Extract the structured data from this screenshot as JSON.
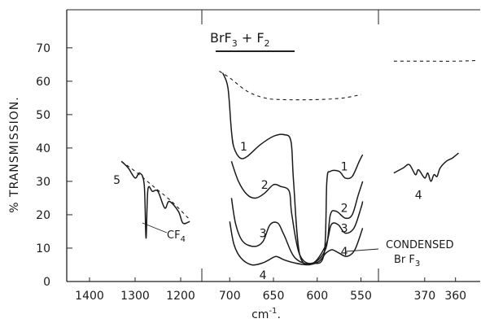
{
  "chart_data": {
    "type": "line",
    "title": "BrF3 + F2",
    "title_parts": {
      "base1": "BrF",
      "sub1": "3",
      "mid": " + F",
      "sub2": "2"
    },
    "ylabel": "% TRANSMISSION.",
    "xlabel": "cm-1.",
    "xlabel_parts": {
      "base": "cm",
      "sup": "-1",
      "tail": "."
    },
    "ylim": [
      0,
      78
    ],
    "y_ticks": [
      "0",
      "10",
      "20",
      "30",
      "40",
      "50",
      "60",
      "70"
    ],
    "grid": false,
    "panels": [
      {
        "id": "left",
        "xlim": [
          1450,
          1150
        ],
        "x_ticks": [
          "1400",
          "1300",
          "1200"
        ],
        "series": [
          {
            "label": "5",
            "points": [
              [
                1330,
                36
              ],
              [
                1315,
                34
              ],
              [
                1300,
                31
              ],
              [
                1290,
                32.5
              ],
              [
                1280,
                29
              ],
              [
                1276,
                13
              ],
              [
                1272,
                27.5
              ],
              [
                1262,
                27
              ],
              [
                1250,
                27
              ],
              [
                1235,
                22
              ],
              [
                1225,
                24
              ],
              [
                1205,
                21
              ],
              [
                1195,
                17.5
              ],
              [
                1180,
                18
              ]
            ]
          },
          {
            "label": "dashed",
            "points": [
              [
                1330,
                36
              ],
              [
                1300,
                33
              ],
              [
                1260,
                28.5
              ],
              [
                1220,
                24
              ],
              [
                1180,
                18.5
              ]
            ]
          }
        ]
      },
      {
        "id": "center",
        "xlim": [
          730,
          530
        ],
        "x_ticks": [
          "700",
          "650",
          "600",
          "550"
        ],
        "series": [
          {
            "label": "dashed",
            "points": [
              [
                712,
                63
              ],
              [
                700,
                61
              ],
              [
                680,
                57
              ],
              [
                660,
                55
              ],
              [
                640,
                54.5
              ],
              [
                600,
                54.5
              ],
              [
                570,
                55
              ],
              [
                550,
                56
              ]
            ]
          },
          {
            "label": "1",
            "points": [
              [
                708,
                62.5
              ],
              [
                702,
                58
              ],
              [
                698,
                45
              ],
              [
                695,
                40
              ],
              [
                688,
                37
              ],
              [
                680,
                37.5
              ],
              [
                665,
                41
              ],
              [
                650,
                43.5
              ],
              [
                638,
                44
              ],
              [
                630,
                42
              ],
              [
                627,
                30
              ],
              [
                620,
                8
              ],
              [
                605,
                5.5
              ],
              [
                592,
                8.5
              ],
              [
                589,
                30
              ],
              [
                585,
                33
              ],
              [
                575,
                33
              ],
              [
                568,
                31
              ],
              [
                560,
                31.5
              ],
              [
                552,
                36
              ],
              [
                548,
                38
              ]
            ]
          },
          {
            "label": "2",
            "points": [
              [
                698,
                36
              ],
              [
                690,
                30
              ],
              [
                680,
                26
              ],
              [
                670,
                25
              ],
              [
                660,
                26.5
              ],
              [
                650,
                29
              ],
              [
                642,
                28.5
              ],
              [
                632,
                27
              ],
              [
                629,
                20
              ],
              [
                620,
                8
              ],
              [
                605,
                5.5
              ],
              [
                590,
                10
              ],
              [
                585,
                20
              ],
              [
                578,
                21
              ],
              [
                568,
                19
              ],
              [
                560,
                20
              ],
              [
                553,
                26
              ],
              [
                548,
                30
              ]
            ]
          },
          {
            "label": "3",
            "points": [
              [
                698,
                25
              ],
              [
                693,
                17
              ],
              [
                685,
                12
              ],
              [
                672,
                10.5
              ],
              [
                662,
                12
              ],
              [
                654,
                17
              ],
              [
                645,
                17.5
              ],
              [
                638,
                14
              ],
              [
                625,
                7
              ],
              [
                605,
                5.5
              ],
              [
                590,
                11
              ],
              [
                584,
                17
              ],
              [
                576,
                17
              ],
              [
                568,
                14.5
              ],
              [
                558,
                16
              ],
              [
                550,
                22
              ],
              [
                548,
                24
              ]
            ]
          },
          {
            "label": "4",
            "points": [
              [
                700,
                18
              ],
              [
                695,
                11
              ],
              [
                687,
                7
              ],
              [
                675,
                5
              ],
              [
                663,
                5.5
              ],
              [
                655,
                6.5
              ],
              [
                647,
                7.5
              ],
              [
                638,
                6.5
              ],
              [
                625,
                5.5
              ],
              [
                610,
                5
              ],
              [
                598,
                6
              ],
              [
                590,
                8.5
              ],
              [
                583,
                9.5
              ],
              [
                575,
                8.5
              ],
              [
                566,
                7.5
              ],
              [
                557,
                9.5
              ],
              [
                548,
                16
              ]
            ]
          }
        ]
      },
      {
        "id": "right",
        "xlim": [
          385,
          352
        ],
        "x_ticks": [
          "370",
          "360"
        ],
        "series": [
          {
            "label": "4",
            "points": [
              [
                380,
                32.5
              ],
              [
                377,
                34
              ],
              [
                375,
                35
              ],
              [
                373,
                32
              ],
              [
                372,
                33.5
              ],
              [
                370,
                31
              ],
              [
                369,
                32.5
              ],
              [
                368,
                30
              ],
              [
                367,
                32
              ],
              [
                366,
                31.5
              ],
              [
                365,
                34
              ],
              [
                363,
                36
              ],
              [
                361,
                37
              ],
              [
                359,
                38.5
              ]
            ]
          },
          {
            "label": "dashed",
            "points": [
              [
                380,
                66
              ],
              [
                370,
                66
              ],
              [
                360,
                66
              ],
              [
                353,
                66.2
              ]
            ]
          }
        ]
      }
    ],
    "annotations": [
      {
        "text": "CF4",
        "parts": {
          "base": "CF",
          "sub": "4"
        }
      },
      {
        "text": "CONDENSED"
      },
      {
        "text": "Br F3",
        "parts": {
          "base": "Br F",
          "sub": "3"
        }
      }
    ]
  }
}
